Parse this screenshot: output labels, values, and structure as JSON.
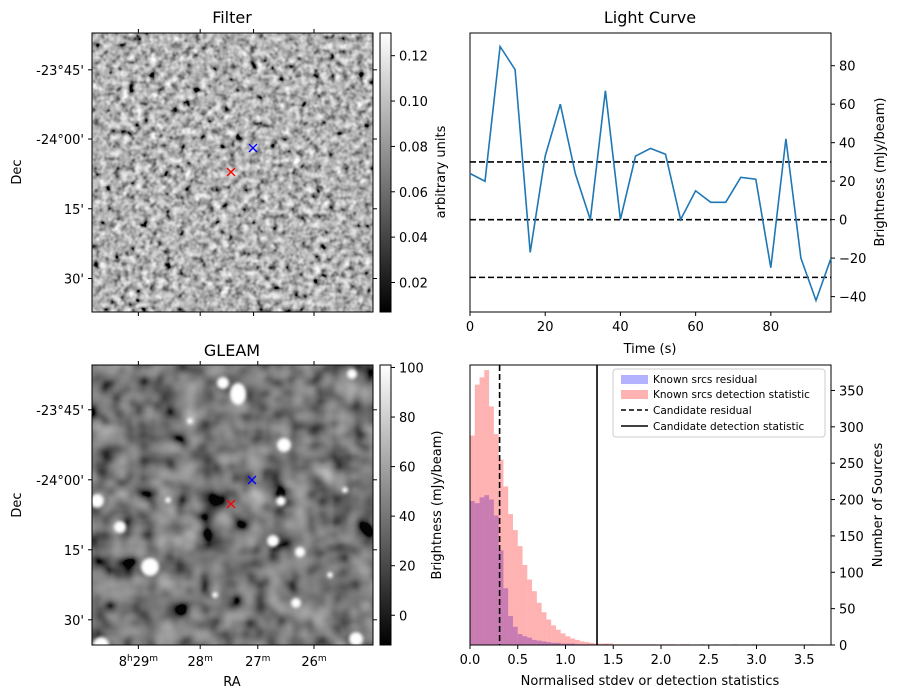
{
  "chart_data": [
    {
      "type": "heatmap",
      "panel": "filter",
      "title": "Filter",
      "ylabel": "Dec",
      "xlabel": "",
      "ytick_labels": [
        "-23°45'",
        "-24°00'",
        "15'",
        "30'"
      ],
      "colorbar": {
        "label": "arbitrary units",
        "range": [
          0.007,
          0.13
        ],
        "ticks": [
          0.02,
          0.04,
          0.06,
          0.08,
          0.1,
          0.12
        ],
        "tick_labels": [
          "0.02",
          "0.04",
          "0.06",
          "0.08",
          "0.10",
          "0.12"
        ]
      },
      "markers": [
        {
          "color": "#0000ff",
          "dec_label_frac": 0.41,
          "ra_frac": 0.575
        },
        {
          "color": "#ff0000",
          "dec_label_frac": 0.5,
          "ra_frac": 0.5
        }
      ],
      "colormap": "gray"
    },
    {
      "type": "line",
      "panel": "light-curve",
      "title": "Light Curve",
      "xlabel": "Time (s)",
      "ylabel": "Brightness (mJy/beam)",
      "xlim": [
        0,
        96
      ],
      "ylim": [
        -48,
        97
      ],
      "xticks": [
        0,
        20,
        40,
        60,
        80
      ],
      "yticks": [
        -40,
        -20,
        0,
        20,
        40,
        60,
        80
      ],
      "series": [
        {
          "color": "#1f77b4",
          "x": [
            0,
            4,
            8,
            12,
            16,
            20,
            24,
            28,
            32,
            36,
            40,
            44,
            48,
            52,
            56,
            60,
            64,
            68,
            72,
            76,
            80,
            84,
            88,
            92,
            96
          ],
          "y": [
            24,
            20,
            90,
            78,
            -17,
            33,
            60,
            24,
            0,
            67,
            0,
            33,
            37,
            34,
            0,
            15,
            9,
            9,
            22,
            21,
            -25,
            42,
            -20,
            -42,
            -20
          ]
        }
      ],
      "hlines": [
        {
          "y": 30,
          "style": "dashed",
          "color": "#000000"
        },
        {
          "y": 0,
          "style": "dashed",
          "color": "#000000"
        },
        {
          "y": -30,
          "style": "dashed",
          "color": "#000000"
        }
      ]
    },
    {
      "type": "heatmap",
      "panel": "gleam",
      "title": "GLEAM",
      "xlabel": "RA",
      "ylabel": "Dec",
      "xtick_labels": [
        {
          "main": "8",
          "sup1": "h",
          "mid": "29",
          "sup2": "m"
        },
        {
          "main": "",
          "sup1": "",
          "mid": "28",
          "sup2": "m"
        },
        {
          "main": "",
          "sup1": "",
          "mid": "27",
          "sup2": "m"
        },
        {
          "main": "",
          "sup1": "",
          "mid": "26",
          "sup2": "m"
        }
      ],
      "ytick_labels": [
        "-23°45'",
        "-24°00'",
        "15'",
        "30'"
      ],
      "colorbar": {
        "label": "Brightness (mJy/beam)",
        "range": [
          -12,
          101
        ],
        "ticks": [
          0,
          20,
          40,
          60,
          80,
          100
        ],
        "tick_labels": [
          "0",
          "20",
          "40",
          "60",
          "80",
          "100"
        ]
      },
      "colormap": "gray"
    },
    {
      "type": "bar",
      "panel": "histogram",
      "xlabel": "Normalised stdev or detection statistics",
      "ylabel": "Number of Sources",
      "xlim": [
        0,
        3.78
      ],
      "ylim": [
        0,
        385
      ],
      "xticks": [
        0.0,
        0.5,
        1.0,
        1.5,
        2.0,
        2.5,
        3.0,
        3.5
      ],
      "xtick_labels": [
        "0.0",
        "0.5",
        "1.0",
        "1.5",
        "2.0",
        "2.5",
        "3.0",
        "3.5"
      ],
      "yticks": [
        0,
        50,
        100,
        150,
        200,
        250,
        300,
        350
      ],
      "bin_width": 0.05,
      "series": [
        {
          "name": "Known srcs residual",
          "color": "#0000ff",
          "alpha": 0.3,
          "bin_start": 0.0,
          "values": [
            198,
            195,
            203,
            206,
            200,
            178,
            130,
            78,
            40,
            25,
            15,
            12,
            10,
            7,
            6,
            5,
            4,
            3,
            3,
            2,
            2,
            2,
            1,
            1,
            1,
            1,
            1,
            0,
            1,
            0
          ]
        },
        {
          "name": "Known srcs detection statistic",
          "color": "#ff0000",
          "alpha": 0.3,
          "bin_start": 0.0,
          "values": [
            288,
            358,
            368,
            378,
            328,
            290,
            255,
            218,
            180,
            158,
            136,
            110,
            90,
            74,
            58,
            45,
            35,
            27,
            21,
            16,
            12,
            9,
            7,
            5,
            4,
            3,
            2,
            2,
            2,
            2,
            1,
            1,
            1,
            1,
            1,
            1,
            1,
            1,
            1,
            0,
            1,
            1,
            1,
            0,
            1,
            1,
            0,
            0,
            1,
            0,
            0,
            1,
            0,
            0,
            0,
            1,
            0,
            0,
            0,
            1,
            0,
            0,
            0,
            0,
            0,
            0,
            0,
            0,
            0,
            0,
            0,
            1
          ]
        }
      ],
      "vlines": [
        {
          "name": "Candidate residual",
          "x": 0.31,
          "style": "dashed",
          "color": "#000000"
        },
        {
          "name": "Candidate detection statistic",
          "x": 1.33,
          "style": "solid",
          "color": "#000000"
        }
      ],
      "legend": {
        "placement": "top-right",
        "entries": [
          "Known srcs residual",
          "Known srcs detection statistic",
          "Candidate residual",
          "Candidate detection statistic"
        ]
      }
    }
  ]
}
